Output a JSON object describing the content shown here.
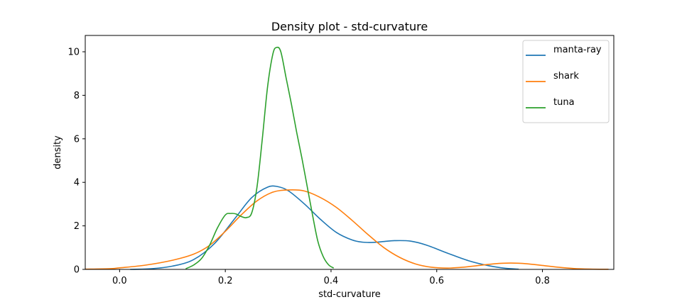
{
  "chart_data": {
    "type": "line",
    "title": "Density plot - std-curvature",
    "xlabel": "std-curvature",
    "ylabel": "density",
    "xlim": [
      -0.065,
      0.935
    ],
    "ylim": [
      0,
      10.75
    ],
    "xticks": [
      0.0,
      0.2,
      0.4,
      0.6,
      0.8
    ],
    "xtick_labels": [
      "0.0",
      "0.2",
      "0.4",
      "0.6",
      "0.8"
    ],
    "yticks": [
      0,
      2,
      4,
      6,
      8,
      10
    ],
    "ytick_labels": [
      "0",
      "2",
      "4",
      "6",
      "8",
      "10"
    ],
    "grid": false,
    "legend_position": "top-right",
    "series": [
      {
        "name": "manta-ray",
        "color": "#1f77b4",
        "points": [
          [
            0.02,
            0.0
          ],
          [
            0.06,
            0.03
          ],
          [
            0.1,
            0.15
          ],
          [
            0.14,
            0.45
          ],
          [
            0.18,
            1.2
          ],
          [
            0.22,
            2.4
          ],
          [
            0.25,
            3.3
          ],
          [
            0.28,
            3.78
          ],
          [
            0.3,
            3.8
          ],
          [
            0.32,
            3.6
          ],
          [
            0.35,
            3.0
          ],
          [
            0.38,
            2.3
          ],
          [
            0.41,
            1.7
          ],
          [
            0.44,
            1.35
          ],
          [
            0.46,
            1.25
          ],
          [
            0.48,
            1.24
          ],
          [
            0.5,
            1.28
          ],
          [
            0.52,
            1.32
          ],
          [
            0.55,
            1.3
          ],
          [
            0.58,
            1.12
          ],
          [
            0.62,
            0.75
          ],
          [
            0.66,
            0.4
          ],
          [
            0.7,
            0.16
          ],
          [
            0.73,
            0.05
          ],
          [
            0.755,
            0.01
          ]
        ]
      },
      {
        "name": "shark",
        "color": "#ff7f0e",
        "points": [
          [
            -0.065,
            0.01
          ],
          [
            -0.02,
            0.03
          ],
          [
            0.0,
            0.07
          ],
          [
            0.05,
            0.2
          ],
          [
            0.1,
            0.42
          ],
          [
            0.14,
            0.7
          ],
          [
            0.17,
            1.1
          ],
          [
            0.2,
            1.75
          ],
          [
            0.23,
            2.5
          ],
          [
            0.26,
            3.15
          ],
          [
            0.29,
            3.55
          ],
          [
            0.32,
            3.65
          ],
          [
            0.35,
            3.6
          ],
          [
            0.38,
            3.3
          ],
          [
            0.41,
            2.85
          ],
          [
            0.44,
            2.25
          ],
          [
            0.47,
            1.6
          ],
          [
            0.5,
            1.0
          ],
          [
            0.53,
            0.55
          ],
          [
            0.56,
            0.25
          ],
          [
            0.59,
            0.1
          ],
          [
            0.62,
            0.06
          ],
          [
            0.65,
            0.1
          ],
          [
            0.68,
            0.18
          ],
          [
            0.71,
            0.26
          ],
          [
            0.74,
            0.29
          ],
          [
            0.77,
            0.26
          ],
          [
            0.8,
            0.18
          ],
          [
            0.83,
            0.1
          ],
          [
            0.86,
            0.04
          ],
          [
            0.89,
            0.015
          ],
          [
            0.925,
            0.005
          ]
        ]
      },
      {
        "name": "tuna",
        "color": "#2ca02c",
        "points": [
          [
            0.125,
            0.03
          ],
          [
            0.14,
            0.2
          ],
          [
            0.155,
            0.5
          ],
          [
            0.17,
            1.1
          ],
          [
            0.185,
            1.9
          ],
          [
            0.2,
            2.5
          ],
          [
            0.21,
            2.57
          ],
          [
            0.22,
            2.55
          ],
          [
            0.23,
            2.43
          ],
          [
            0.24,
            2.38
          ],
          [
            0.25,
            2.6
          ],
          [
            0.26,
            3.8
          ],
          [
            0.27,
            6.0
          ],
          [
            0.28,
            8.4
          ],
          [
            0.29,
            9.9
          ],
          [
            0.297,
            10.2
          ],
          [
            0.305,
            10.0
          ],
          [
            0.315,
            8.8
          ],
          [
            0.325,
            7.6
          ],
          [
            0.335,
            6.3
          ],
          [
            0.345,
            5.1
          ],
          [
            0.355,
            3.8
          ],
          [
            0.365,
            2.5
          ],
          [
            0.375,
            1.3
          ],
          [
            0.385,
            0.6
          ],
          [
            0.395,
            0.22
          ],
          [
            0.405,
            0.06
          ]
        ]
      }
    ]
  }
}
